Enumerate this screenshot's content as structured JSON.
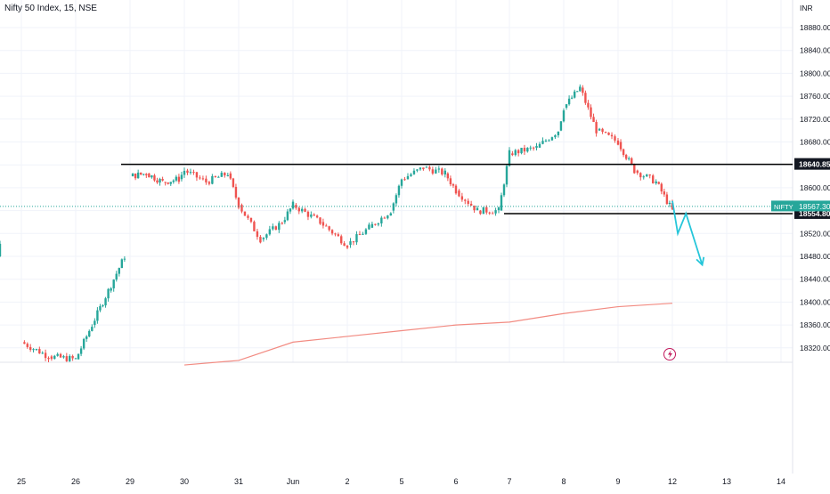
{
  "symbol_title": "Nifty 50 Index, 15, NSE",
  "currency": "INR",
  "price_tag": {
    "label": "NIFTY",
    "value": "18567.30"
  },
  "level_labels": [
    "18640.85",
    "18554.80"
  ],
  "colors": {
    "up": "#26a69a",
    "down": "#ef5350",
    "ma": "#f28b82",
    "level": "#000000",
    "tag": "#26a69a",
    "projection": "#26c6da",
    "grid": "#f0f3fa",
    "text": "#131722"
  },
  "icons": {
    "event": "lightning-icon"
  },
  "chart_data": {
    "type": "candlestick",
    "title": "Nifty 50 Index, 15, NSE",
    "ylim": [
      18290,
      18920
    ],
    "y_ticks": [
      "18880.00",
      "18840.00",
      "18800.00",
      "18760.00",
      "18720.00",
      "18680.00",
      "18640.00",
      "18600.00",
      "18560.00",
      "18520.00",
      "18480.00",
      "18440.00",
      "18400.00",
      "18360.00",
      "18320.00"
    ],
    "x_ticks": [
      "25",
      "26",
      "29",
      "30",
      "31",
      "Jun",
      "2",
      "5",
      "6",
      "7",
      "8",
      "9",
      "12",
      "13",
      "14"
    ],
    "last_price": 18567.3,
    "horizontal_levels": [
      18640.85,
      18554.8
    ],
    "price_path": [
      {
        "t": "25",
        "p": 18330
      },
      {
        "t": "25.5",
        "p": 18305
      },
      {
        "t": "26",
        "p": 18300
      },
      {
        "t": "26.3",
        "p": 18360
      },
      {
        "t": "26.6",
        "p": 18420
      },
      {
        "t": "26.9",
        "p": 18480
      },
      {
        "t": "27",
        "p": 18500
      },
      {
        "t": "29",
        "p": 18620
      },
      {
        "t": "29.3",
        "p": 18625
      },
      {
        "t": "29.6",
        "p": 18610
      },
      {
        "t": "29.9",
        "p": 18615
      },
      {
        "t": "30",
        "p": 18630
      },
      {
        "t": "30.4",
        "p": 18610
      },
      {
        "t": "30.8",
        "p": 18625
      },
      {
        "t": "31",
        "p": 18570
      },
      {
        "t": "31.4",
        "p": 18510
      },
      {
        "t": "31.8",
        "p": 18540
      },
      {
        "t": "Jun",
        "p": 18570
      },
      {
        "t": "Jun.5",
        "p": 18540
      },
      {
        "t": "2",
        "p": 18500
      },
      {
        "t": "2.4",
        "p": 18530
      },
      {
        "t": "2.8",
        "p": 18560
      },
      {
        "t": "5",
        "p": 18615
      },
      {
        "t": "5.4",
        "p": 18635
      },
      {
        "t": "5.8",
        "p": 18625
      },
      {
        "t": "6",
        "p": 18595
      },
      {
        "t": "6.4",
        "p": 18560
      },
      {
        "t": "6.8",
        "p": 18560
      },
      {
        "t": "7",
        "p": 18660
      },
      {
        "t": "7.5",
        "p": 18670
      },
      {
        "t": "7.9",
        "p": 18700
      },
      {
        "t": "8",
        "p": 18740
      },
      {
        "t": "8.3",
        "p": 18775
      },
      {
        "t": "8.6",
        "p": 18700
      },
      {
        "t": "9",
        "p": 18680
      },
      {
        "t": "9.3",
        "p": 18630
      },
      {
        "t": "9.7",
        "p": 18610
      },
      {
        "t": "12",
        "p": 18560
      }
    ],
    "ma_path": [
      {
        "t": "30",
        "p": 18290
      },
      {
        "t": "31",
        "p": 18298
      },
      {
        "t": "Jun",
        "p": 18330
      },
      {
        "t": "2",
        "p": 18340
      },
      {
        "t": "5",
        "p": 18350
      },
      {
        "t": "6",
        "p": 18360
      },
      {
        "t": "7",
        "p": 18365
      },
      {
        "t": "8",
        "p": 18380
      },
      {
        "t": "9",
        "p": 18392
      },
      {
        "t": "12",
        "p": 18398
      }
    ],
    "projection_path": [
      {
        "t": "12",
        "p": 18577
      },
      {
        "t": "12.1",
        "p": 18520
      },
      {
        "t": "12.25",
        "p": 18555
      },
      {
        "t": "12.55",
        "p": 18465
      }
    ]
  }
}
